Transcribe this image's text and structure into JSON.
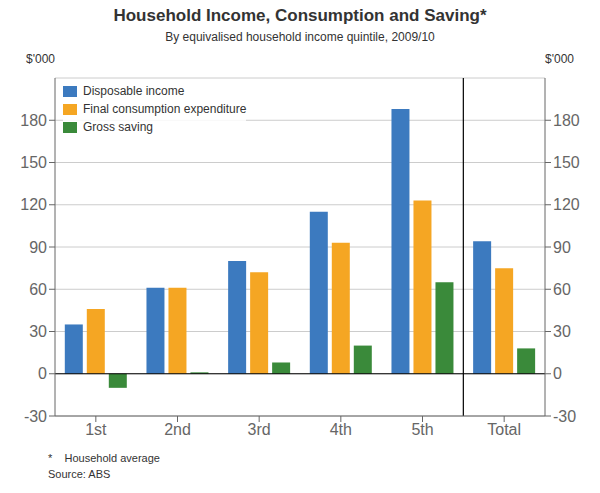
{
  "chart_data": {
    "type": "bar",
    "title": "Household Income, Consumption and Saving*",
    "subtitle": "By equivalised household income quintile, 2009/10",
    "ylabel": "$'000",
    "y2label": "$'000",
    "annotations": [
      "*    Household average",
      "Source: ABS"
    ],
    "categories": [
      "1st",
      "2nd",
      "3rd",
      "4th",
      "5th",
      "Total"
    ],
    "series": [
      {
        "name": "Disposable income",
        "color": "#3c7abf",
        "values": [
          35,
          61,
          80,
          115,
          188,
          94
        ]
      },
      {
        "name": "Final consumption expenditure",
        "color": "#f5a623",
        "values": [
          46,
          61,
          72,
          93,
          123,
          75
        ]
      },
      {
        "name": "Gross saving",
        "color": "#3a8a3a",
        "values": [
          -10,
          1,
          8,
          20,
          65,
          18
        ]
      }
    ],
    "ylim": [
      -30,
      210
    ],
    "yticks": [
      -30,
      0,
      30,
      60,
      90,
      120,
      150,
      180
    ],
    "y2lim": [
      -30,
      210
    ],
    "y2ticks": [
      -30,
      0,
      30,
      60,
      90,
      120,
      150,
      180
    ],
    "grid": true,
    "legend": "upper left"
  }
}
